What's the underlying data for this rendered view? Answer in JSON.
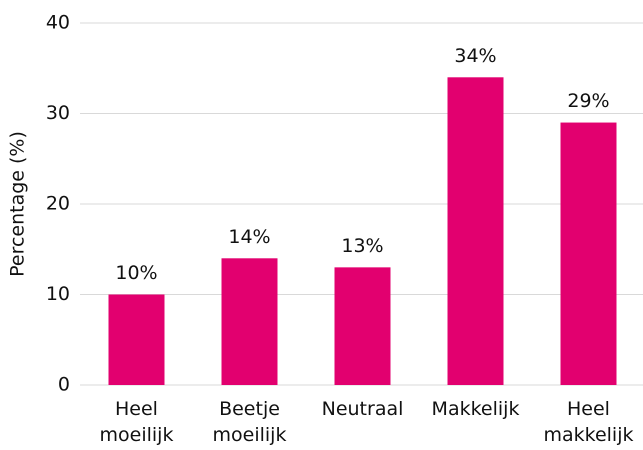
{
  "chart_data": {
    "type": "bar",
    "ylabel": "Percentage (%)",
    "categories": [
      "Heel moeilijk",
      "Beetje moeilijk",
      "Neutraal",
      "Makkelijk",
      "Heel makkelijk"
    ],
    "values": [
      10,
      14,
      13,
      34,
      29
    ],
    "value_labels": [
      "10%",
      "14%",
      "13%",
      "34%",
      "29%"
    ],
    "color": "#e2006f",
    "ylim": [
      0,
      40
    ],
    "yticks": [
      0,
      10,
      20,
      30,
      40
    ],
    "grid": true
  }
}
